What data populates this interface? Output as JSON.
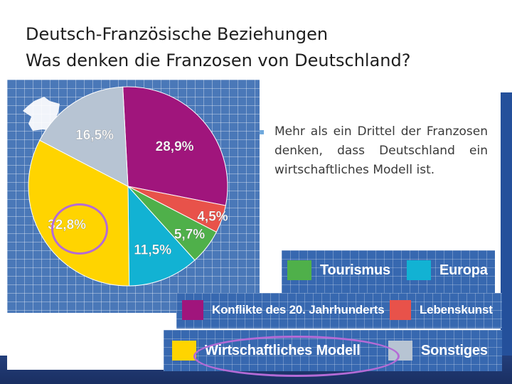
{
  "slide": {
    "title_line1": "Deutsch-Französische Beziehungen",
    "title_line2": "Was denken die Franzosen von Deutschland?"
  },
  "bullet": {
    "text": "Mehr als ein Drittel der Franzosen denken, dass Deutschland ein wirtschaftliches Modell ist."
  },
  "map_icon": "france-map-icon",
  "chart_data": {
    "type": "pie",
    "title": "",
    "unit": "%",
    "slices": [
      {
        "label": "Konflikte des 20. Jahrhunderts",
        "value": 28.9,
        "display": "28,9%",
        "color": "#a0157c"
      },
      {
        "label": "Lebenskunst",
        "value": 4.5,
        "display": "4,5%",
        "color": "#e8524a"
      },
      {
        "label": "Tourismus",
        "value": 5.7,
        "display": "5,7%",
        "color": "#4fb04a"
      },
      {
        "label": "Europa",
        "value": 11.5,
        "display": "11,5%",
        "color": "#12b2d3"
      },
      {
        "label": "Wirtschaftliches Modell",
        "value": 32.8,
        "display": "32,8%",
        "color": "#ffd400"
      },
      {
        "label": "Sonstiges",
        "value": 16.5,
        "display": "16,5%",
        "color": "#b7c4d3"
      }
    ],
    "legend": [
      {
        "label": "Tourismus",
        "color": "#4fb04a"
      },
      {
        "label": "Europa",
        "color": "#12b2d3"
      },
      {
        "label": "Konflikte des 20. Jahrhunderts",
        "color": "#a0157c"
      },
      {
        "label": "Lebenskunst",
        "color": "#e8524a"
      },
      {
        "label": "Wirtschaftliches Modell",
        "color": "#ffd400"
      },
      {
        "label": "Sonstiges",
        "color": "#b7c4d3"
      }
    ],
    "highlighted": "Wirtschaftliches Modell"
  }
}
